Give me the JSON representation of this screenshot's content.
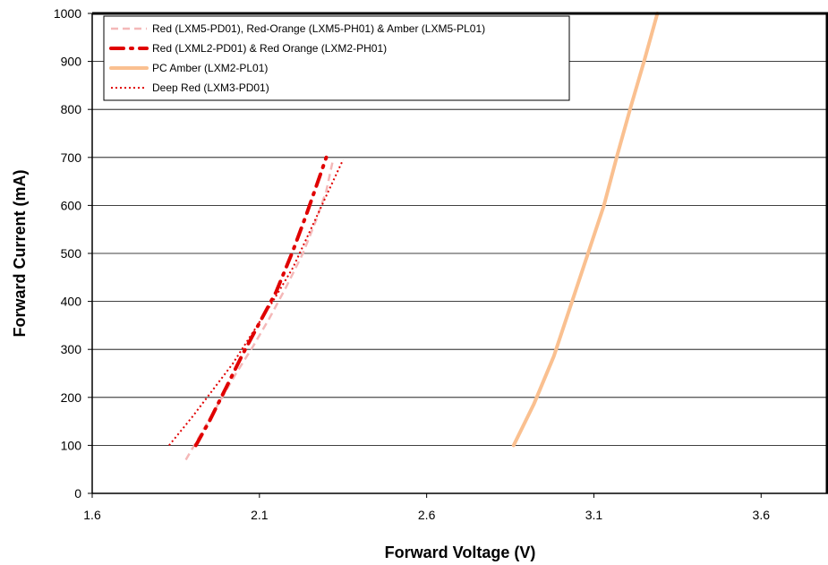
{
  "chart_data": {
    "type": "line",
    "xlabel": "Forward Voltage (V)",
    "ylabel": "Forward Current (mA)",
    "xlim": [
      1.6,
      3.8
    ],
    "ylim": [
      0,
      1000
    ],
    "xticks": [
      1.6,
      2.1,
      2.6,
      3.1,
      3.6
    ],
    "xtick_labels": [
      "1.6",
      "2.1",
      "2.6",
      "3.1",
      "3.6"
    ],
    "yticks": [
      0,
      100,
      200,
      300,
      400,
      500,
      600,
      700,
      800,
      900,
      1000
    ],
    "ytick_labels": [
      "0",
      "100",
      "200",
      "300",
      "400",
      "500",
      "600",
      "700",
      "800",
      "900",
      "1000"
    ],
    "grid": "horizontal",
    "legend_position": "top-left",
    "series": [
      {
        "name": "Red (LXM5-PD01), Red-Orange (LXM5-PH01) & Amber (LXM5-PL01)",
        "color": "#f4b8b8",
        "style": "dashed",
        "points": [
          [
            1.88,
            70
          ],
          [
            1.93,
            130
          ],
          [
            1.98,
            190
          ],
          [
            2.03,
            250
          ],
          [
            2.08,
            305
          ],
          [
            2.13,
            365
          ],
          [
            2.18,
            430
          ],
          [
            2.23,
            500
          ],
          [
            2.27,
            570
          ],
          [
            2.3,
            630
          ],
          [
            2.32,
            695
          ]
        ]
      },
      {
        "name": "Red (LXML2-PD01) & Red Orange (LXM2-PH01)",
        "color": "#e00000",
        "style": "dashdot",
        "points": [
          [
            1.91,
            100
          ],
          [
            1.95,
            150
          ],
          [
            2.0,
            220
          ],
          [
            2.05,
            290
          ],
          [
            2.1,
            355
          ],
          [
            2.15,
            420
          ],
          [
            2.2,
            505
          ],
          [
            2.24,
            580
          ],
          [
            2.28,
            660
          ],
          [
            2.3,
            700
          ]
        ]
      },
      {
        "name": "PC Amber (LXM2-PL01)",
        "color": "#fac090",
        "style": "solid",
        "points": [
          [
            2.86,
            100
          ],
          [
            2.92,
            185
          ],
          [
            2.98,
            285
          ],
          [
            3.03,
            390
          ],
          [
            3.08,
            495
          ],
          [
            3.13,
            600
          ],
          [
            3.17,
            705
          ],
          [
            3.21,
            805
          ],
          [
            3.25,
            900
          ],
          [
            3.29,
            1000
          ]
        ]
      },
      {
        "name": "Deep Red (LXM3-PD01)",
        "color": "#e00000",
        "style": "dotted",
        "points": [
          [
            1.83,
            100
          ],
          [
            1.9,
            160
          ],
          [
            1.96,
            215
          ],
          [
            2.02,
            270
          ],
          [
            2.08,
            335
          ],
          [
            2.14,
            400
          ],
          [
            2.2,
            470
          ],
          [
            2.25,
            545
          ],
          [
            2.3,
            620
          ],
          [
            2.35,
            695
          ]
        ]
      }
    ]
  }
}
